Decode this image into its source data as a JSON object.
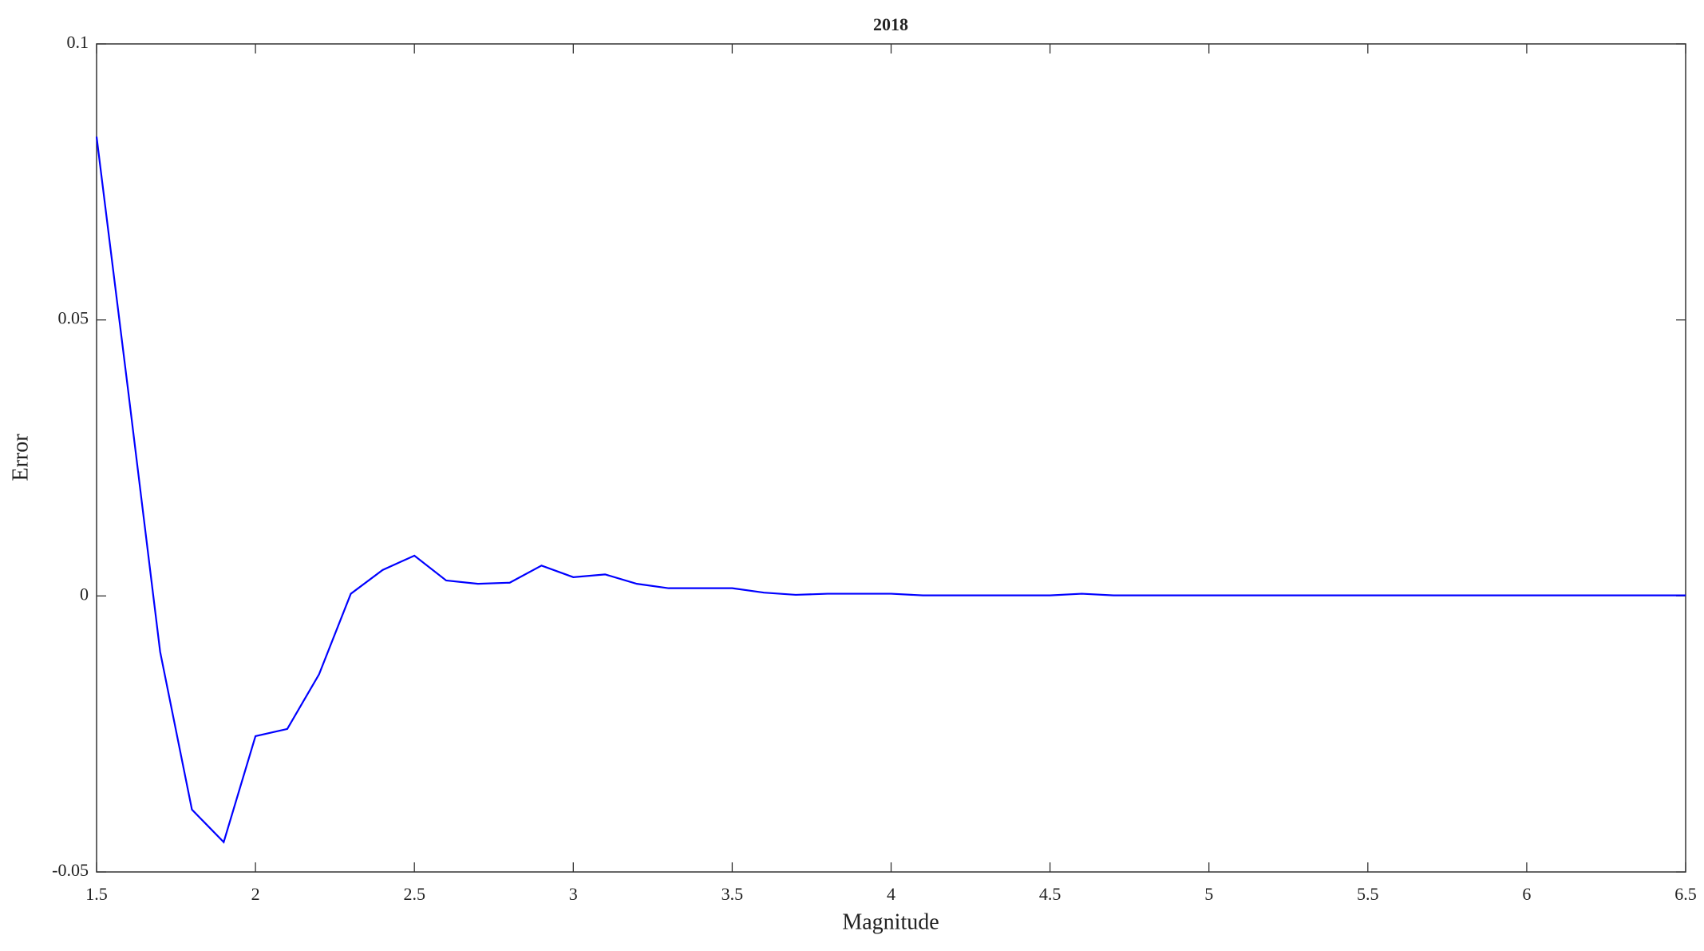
{
  "chart_data": {
    "type": "line",
    "title": "2018",
    "x_label": "Magnitude",
    "y_label": "Error",
    "x": [
      1.5,
      1.6,
      1.7,
      1.8,
      1.9,
      2.0,
      2.1,
      2.2,
      2.3,
      2.4,
      2.5,
      2.6,
      2.7,
      2.8,
      2.9,
      3.0,
      3.1,
      3.2,
      3.3,
      3.4,
      3.5,
      3.6,
      3.7,
      3.8,
      3.9,
      4.0,
      4.1,
      4.2,
      4.3,
      4.4,
      4.5,
      4.6,
      4.7,
      4.8,
      4.9,
      5.0,
      5.1,
      5.2,
      5.3,
      5.4,
      5.5,
      5.6,
      5.7,
      5.8,
      5.9,
      6.0,
      6.1,
      6.2,
      6.3,
      6.4,
      6.5
    ],
    "series": [
      {
        "name": "Error",
        "color": "#0000ff",
        "values": [
          0.0832,
          0.0369,
          -0.0101,
          -0.0387,
          -0.0446,
          -0.0254,
          -0.0241,
          -0.0142,
          0.0004,
          0.0047,
          0.0073,
          0.0028,
          0.0022,
          0.0024,
          0.0055,
          0.0034,
          0.0039,
          0.0022,
          0.0014,
          0.0014,
          0.0014,
          0.0006,
          0.0002,
          0.0004,
          0.0004,
          0.0004,
          0.0001,
          0.0001,
          0.0001,
          0.0001,
          0.0001,
          0.0004,
          0.0001,
          0.0001,
          0.0001,
          0.0001,
          0.0001,
          0.0001,
          0.0001,
          0.0001,
          0.0001,
          0.0001,
          0.0001,
          0.0001,
          0.0001,
          0.0001,
          0.0001,
          0.0001,
          0.0001,
          0.0001,
          0.0001
        ]
      }
    ],
    "xlim": [
      1.5,
      6.5
    ],
    "xticks": [
      1.5,
      2,
      2.5,
      3,
      3.5,
      4,
      4.5,
      5,
      5.5,
      6,
      6.5
    ],
    "ylim": [
      -0.05,
      0.1
    ],
    "yticks": [
      -0.05,
      0,
      0.05,
      0.1
    ],
    "grid": false
  }
}
